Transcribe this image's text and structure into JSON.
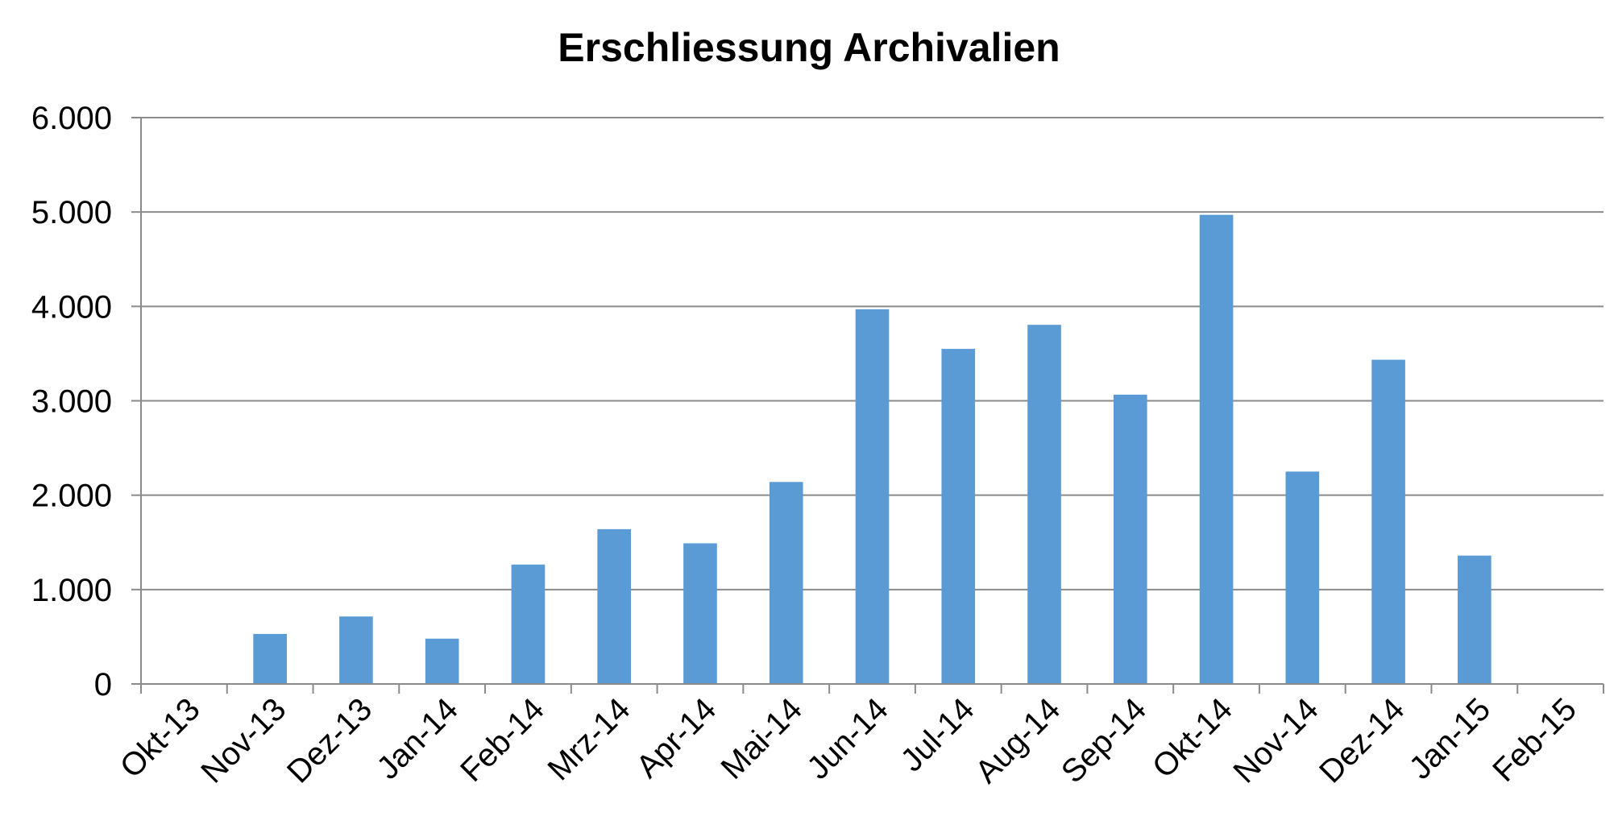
{
  "chart_data": {
    "type": "bar",
    "title": "Erschliessung Archivalien",
    "xlabel": "",
    "ylabel": "",
    "categories": [
      "Okt-13",
      "Nov-13",
      "Dez-13",
      "Jan-14",
      "Feb-14",
      "Mrz-14",
      "Apr-14",
      "Mai-14",
      "Jun-14",
      "Jul-14",
      "Aug-14",
      "Sep-14",
      "Okt-14",
      "Nov-14",
      "Dez-14",
      "Jan-15",
      "Feb-15"
    ],
    "values": [
      0,
      530,
      715,
      480,
      1265,
      1640,
      1490,
      2140,
      3970,
      3550,
      3805,
      3065,
      4970,
      2250,
      3435,
      1360,
      0
    ],
    "ylim": [
      0,
      6000
    ],
    "yticks": [
      0,
      1000,
      2000,
      3000,
      4000,
      5000,
      6000
    ],
    "ytick_labels": [
      "0",
      "1.000",
      "2.000",
      "3.000",
      "4.000",
      "5.000",
      "6.000"
    ],
    "grid": true,
    "bar_color": "#5b9bd5",
    "legend": "none"
  }
}
